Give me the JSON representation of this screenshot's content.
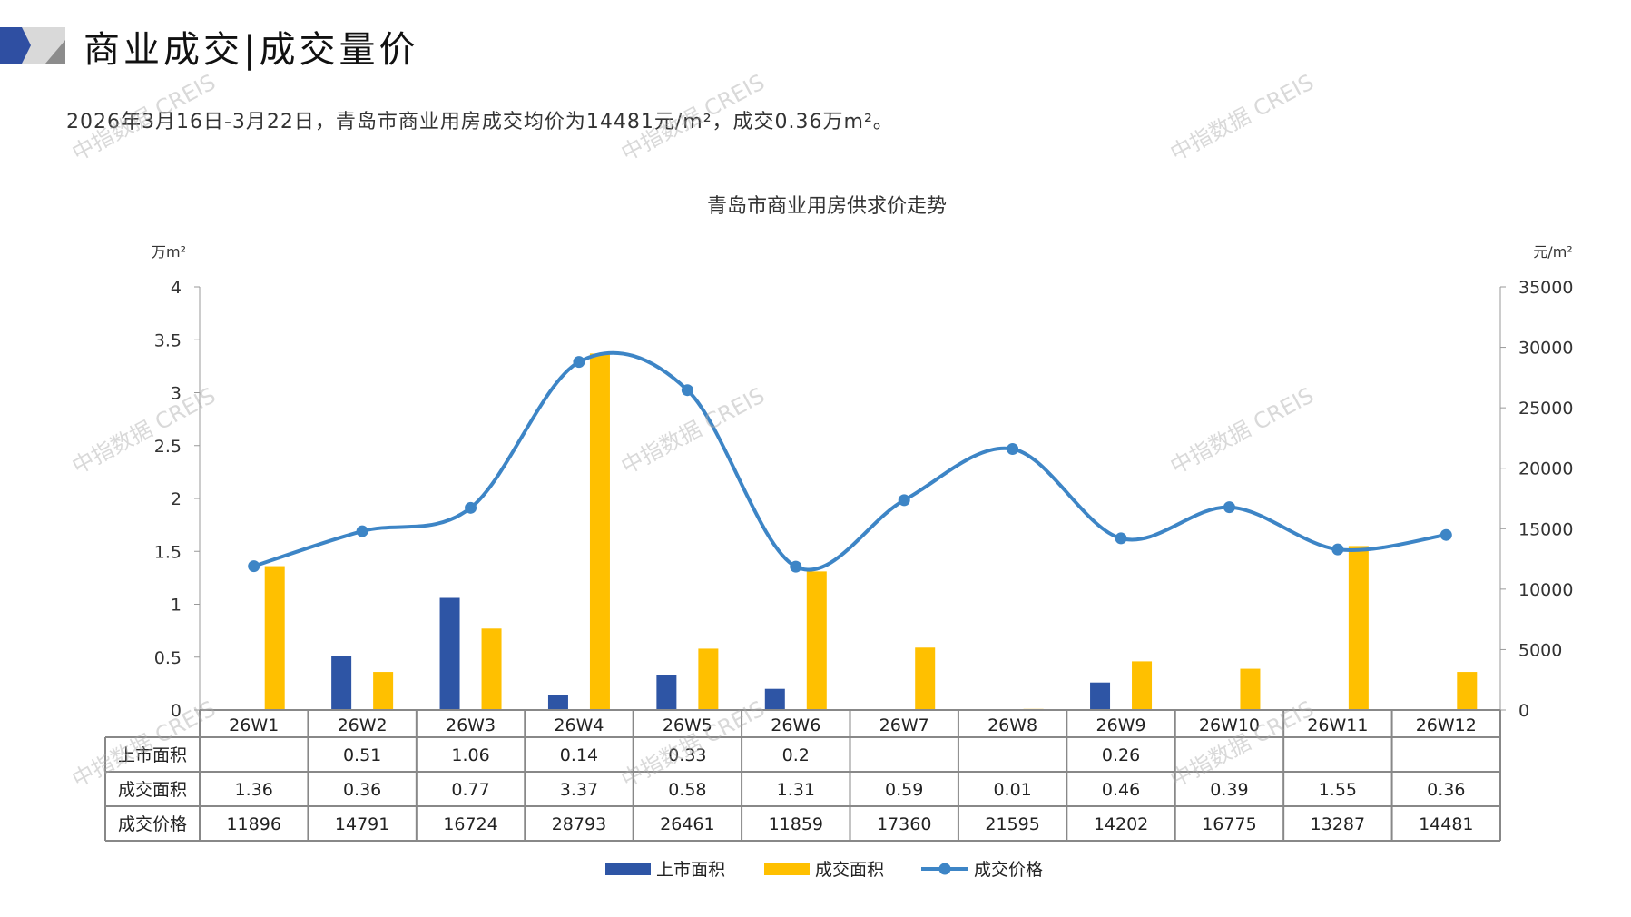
{
  "header": {
    "title": "商业成交|成交量价"
  },
  "summary": "2026年3月16日-3月22日，青岛市商业用房成交均价为14481元/m²，成交0.36万m²。",
  "watermark": "中指数据 CREIS",
  "colors": {
    "supply": "#2E55A5",
    "deal": "#FFC000",
    "price": "#3D85C6",
    "accent_blue": "#2F4FA2",
    "accent_gray": "#BFBFBF"
  },
  "chart_data": {
    "type": "bar+line",
    "title": "青岛市商业用房供求价走势",
    "ylabel_left": "万m²",
    "ylabel_right": "元/m²",
    "ylim_left": [
      0,
      4
    ],
    "ylim_right": [
      0,
      35000
    ],
    "yticks_left": [
      "0",
      "0.5",
      "1",
      "1.5",
      "2",
      "2.5",
      "3",
      "3.5",
      "4"
    ],
    "yticks_right": [
      "0",
      "5000",
      "10000",
      "15000",
      "20000",
      "25000",
      "30000",
      "35000"
    ],
    "categories": [
      "26W1",
      "26W2",
      "26W3",
      "26W4",
      "26W5",
      "26W6",
      "26W7",
      "26W8",
      "26W9",
      "26W10",
      "26W11",
      "26W12"
    ],
    "series": [
      {
        "name": "上市面积",
        "type": "bar",
        "axis": "left",
        "values": [
          null,
          0.51,
          1.06,
          0.14,
          0.33,
          0.2,
          null,
          null,
          0.26,
          null,
          null,
          null
        ],
        "labels": [
          "",
          "0.51",
          "1.06",
          "0.14",
          "0.33",
          "0.2",
          "",
          "",
          "0.26",
          "",
          "",
          ""
        ]
      },
      {
        "name": "成交面积",
        "type": "bar",
        "axis": "left",
        "values": [
          1.36,
          0.36,
          0.77,
          3.37,
          0.58,
          1.31,
          0.59,
          0.01,
          0.46,
          0.39,
          1.55,
          0.36
        ],
        "labels": [
          "1.36",
          "0.36",
          "0.77",
          "3.37",
          "0.58",
          "1.31",
          "0.59",
          "0.01",
          "0.46",
          "0.39",
          "1.55",
          "0.36"
        ]
      },
      {
        "name": "成交价格",
        "type": "line",
        "axis": "right",
        "values": [
          11896,
          14791,
          16724,
          28793,
          26461,
          11859,
          17360,
          21595,
          14202,
          16775,
          13287,
          14481
        ],
        "labels": [
          "11896",
          "14791",
          "16724",
          "28793",
          "26461",
          "11859",
          "17360",
          "21595",
          "14202",
          "16775",
          "13287",
          "14481"
        ]
      }
    ],
    "legend_position": "bottom"
  }
}
